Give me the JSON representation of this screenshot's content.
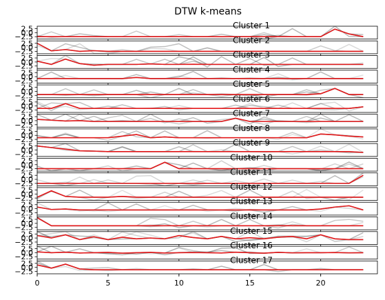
{
  "chart_data": {
    "type": "line",
    "title": "DTW k-means",
    "xlabel": "",
    "ylabel": "",
    "xlim": [
      0,
      24
    ],
    "ylim": [
      -4,
      4
    ],
    "x_ticks": [
      0,
      5,
      10,
      15,
      20
    ],
    "y_ticks": [
      2.5,
      0.0,
      -2.5
    ],
    "y_tick_labels": [
      "2.5",
      "0.0",
      "−2.5"
    ],
    "colors": {
      "centroid": "#e41a1c",
      "members": "#000000",
      "frame": "#000000"
    },
    "clusters": [
      {
        "label": "Cluster 1",
        "centroid": [
          -2.5,
          -2.5,
          -2.5,
          -2.5,
          -2.5,
          -2.5,
          -2.5,
          -2.5,
          -2.5,
          -2.5,
          -2.5,
          -2.5,
          -2.5,
          -2.5,
          -2.5,
          -2.5,
          -2.5,
          -2.5,
          -2.5,
          -2.5,
          -2.5,
          2.2,
          -0.8,
          -2.5
        ]
      },
      {
        "label": "Cluster 2",
        "centroid": [
          2.5,
          -2.2,
          -1.4,
          -2.5,
          -2.1,
          -2.5,
          -2.5,
          -2.5,
          -2.5,
          -2.5,
          -2.5,
          -2.5,
          -2.5,
          -2.5,
          -2.5,
          -2.5,
          -2.5,
          -2.5,
          -2.5,
          -2.5,
          -2.5,
          -2.5,
          -2.5,
          -2.5
        ]
      },
      {
        "label": "Cluster 3",
        "centroid": [
          0.5,
          -1.5,
          1.8,
          -1.0,
          -2.0,
          -1.5,
          -1.5,
          -1.5,
          -1.2,
          -1.5,
          -1.5,
          -1.4,
          -1.5,
          -1.5,
          -1.5,
          -1.5,
          -1.5,
          -1.5,
          -1.5,
          -1.5,
          -1.5,
          -1.5,
          -1.5,
          -1.5
        ]
      },
      {
        "label": "Cluster 4",
        "centroid": [
          -1.2,
          -1.2,
          -1.2,
          -1.2,
          -1.2,
          -1.2,
          -1.2,
          -0.5,
          -1.2,
          -1.2,
          -1.2,
          -1.2,
          -1.2,
          -1.2,
          -1.2,
          -1.2,
          -1.2,
          -1.2,
          -1.2,
          -1.2,
          -1.2,
          -1.2,
          -1.2,
          -1.2
        ]
      },
      {
        "label": "Cluster 5",
        "centroid": [
          -2.0,
          -2.0,
          -2.0,
          -2.0,
          -2.0,
          -2.0,
          -2.0,
          -2.0,
          -2.0,
          -2.0,
          -2.0,
          -2.0,
          -2.0,
          -2.0,
          -2.0,
          -2.0,
          -2.0,
          -2.0,
          -2.0,
          -2.0,
          -1.5,
          1.8,
          -2.0,
          -2.0
        ]
      },
      {
        "label": "Cluster 6",
        "centroid": [
          -1.5,
          -1.5,
          1.5,
          -1.5,
          -1.5,
          -1.5,
          -1.5,
          -1.5,
          -1.5,
          -1.5,
          -1.5,
          -1.5,
          -1.5,
          -1.5,
          -1.5,
          -1.5,
          -1.5,
          -1.5,
          -1.5,
          -1.5,
          -1.5,
          -1.5,
          -1.5,
          -0.5
        ]
      },
      {
        "label": "Cluster 7",
        "centroid": [
          0.8,
          0.3,
          -0.2,
          0.0,
          -0.5,
          -0.5,
          -0.5,
          -0.5,
          -0.5,
          -0.5,
          -0.5,
          -0.5,
          -0.5,
          -0.5,
          1.5,
          -0.5,
          -0.5,
          -0.5,
          -0.5,
          -0.5,
          -0.5,
          -0.5,
          -0.5,
          -0.5
        ]
      },
      {
        "label": "Cluster 8",
        "centroid": [
          -1.5,
          -1.5,
          -1.5,
          -1.5,
          -1.5,
          -1.5,
          -0.5,
          0.5,
          -1.5,
          -1.0,
          -1.5,
          -1.5,
          -1.5,
          -1.5,
          -1.5,
          -1.5,
          -1.5,
          -1.5,
          -1.5,
          -1.5,
          0.8,
          0.3,
          -0.5,
          -1.0
        ]
      },
      {
        "label": "Cluster 9",
        "centroid": [
          2.5,
          1.5,
          0.5,
          -0.5,
          -0.7,
          -1.0,
          -1.0,
          -1.0,
          -1.0,
          -1.0,
          -1.0,
          -1.0,
          -1.0,
          -1.0,
          -1.0,
          -1.0,
          -1.0,
          -1.0,
          -1.0,
          -1.0,
          -1.0,
          -1.0,
          -1.0,
          -1.5
        ]
      },
      {
        "label": "Cluster 10",
        "centroid": [
          -2.5,
          -2.5,
          -2.5,
          -2.5,
          -2.5,
          -2.5,
          -2.5,
          -2.5,
          -2.5,
          1.5,
          -2.5,
          -2.5,
          -2.5,
          -2.5,
          -2.5,
          -2.5,
          -2.5,
          -2.5,
          -2.5,
          -2.5,
          -2.5,
          -2.5,
          -2.5,
          -2.5
        ]
      },
      {
        "label": "Cluster 11",
        "centroid": [
          -2.5,
          -2.5,
          -2.5,
          -2.5,
          -2.5,
          -2.5,
          -2.5,
          -2.5,
          -2.5,
          -2.5,
          -2.5,
          -2.5,
          -2.5,
          -2.5,
          -2.5,
          -2.5,
          -2.5,
          -2.5,
          -2.5,
          -2.5,
          -2.5,
          -2.5,
          -2.5,
          2.5
        ]
      },
      {
        "label": "Cluster 12",
        "centroid": [
          -2.0,
          2.0,
          -1.5,
          -2.0,
          -2.0,
          -2.0,
          -1.5,
          -2.0,
          -2.0,
          -2.0,
          -2.0,
          -2.0,
          -2.0,
          -2.0,
          -2.0,
          -2.0,
          -2.0,
          -2.0,
          -2.0,
          -2.0,
          -2.0,
          -2.0,
          -2.0,
          -2.0
        ]
      },
      {
        "label": "Cluster 13",
        "centroid": [
          1.0,
          -0.5,
          -0.2,
          -0.8,
          -0.8,
          -0.8,
          -0.8,
          -0.8,
          -0.8,
          -0.8,
          -0.8,
          -0.8,
          -0.8,
          -0.8,
          -0.8,
          -0.8,
          -0.8,
          -0.8,
          -0.8,
          -0.8,
          -0.2,
          1.0,
          1.8,
          -0.8
        ]
      },
      {
        "label": "Cluster 14",
        "centroid": [
          3.5,
          -1.5,
          -1.5,
          -1.5,
          -1.5,
          -1.5,
          -1.5,
          -1.5,
          -1.5,
          -1.5,
          -1.5,
          -1.5,
          -1.5,
          -1.5,
          -1.5,
          -1.5,
          -1.5,
          -1.5,
          -1.5,
          -1.5,
          -1.5,
          -1.5,
          -1.5,
          -1.5
        ]
      },
      {
        "label": "Cluster 15",
        "centroid": [
          1.5,
          0.0,
          2.0,
          -1.0,
          0.8,
          -1.0,
          0.5,
          -0.5,
          0.0,
          -0.5,
          1.5,
          0.3,
          -0.5,
          1.0,
          -0.5,
          0.2,
          -0.5,
          0.5,
          1.0,
          -0.5,
          2.0,
          -0.5,
          -1.0,
          -1.0
        ]
      },
      {
        "label": "Cluster 16",
        "centroid": [
          0.5,
          0.0,
          0.3,
          -0.2,
          0.0,
          0.2,
          -0.3,
          0.0,
          0.2,
          -0.2,
          0.0,
          0.1,
          0.0,
          -0.2,
          0.3,
          0.0,
          -0.3,
          0.2,
          -0.1,
          0.0,
          0.0,
          0.1,
          -0.1,
          0.0
        ]
      },
      {
        "label": "Cluster 17",
        "centroid": [
          1.5,
          -0.5,
          2.0,
          -1.0,
          -1.5,
          -1.5,
          -1.5,
          -1.5,
          -1.5,
          -1.5,
          -1.5,
          -1.5,
          -1.5,
          -1.5,
          -1.5,
          -1.5,
          -1.5,
          -1.5,
          -1.5,
          -1.5,
          -1.5,
          -1.5,
          -1.5,
          -1.5
        ]
      }
    ]
  }
}
